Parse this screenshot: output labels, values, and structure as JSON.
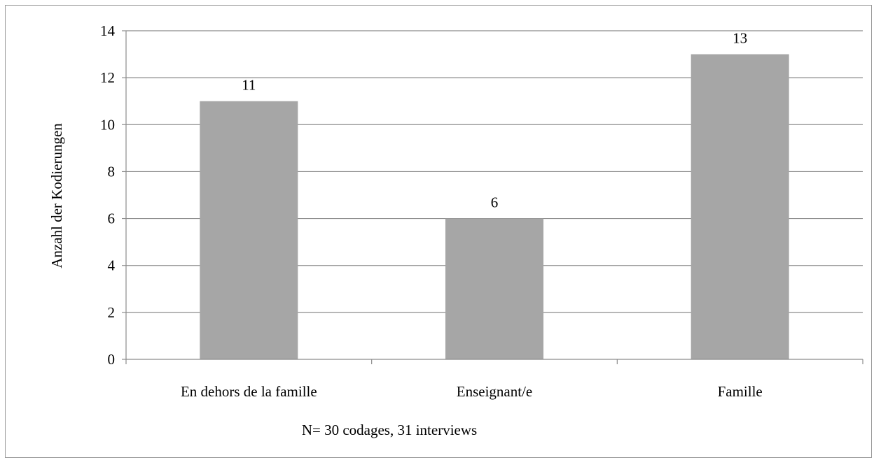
{
  "chart_data": {
    "type": "bar",
    "categories": [
      "En dehors de la famille",
      "Enseignant/e",
      "Famille"
    ],
    "values": [
      11,
      6,
      13
    ],
    "data_labels": [
      "11",
      "6",
      "13"
    ],
    "title": "",
    "xlabel": "N= 30 codages, 31 interviews",
    "ylabel": "Anzahl der Kodierungen",
    "ylim": [
      0,
      14
    ],
    "yticks": [
      0,
      2,
      4,
      6,
      8,
      10,
      12,
      14
    ],
    "grid": true,
    "legend": "none",
    "bar_color": "#a6a6a6",
    "grid_color": "#8c8c8c"
  }
}
